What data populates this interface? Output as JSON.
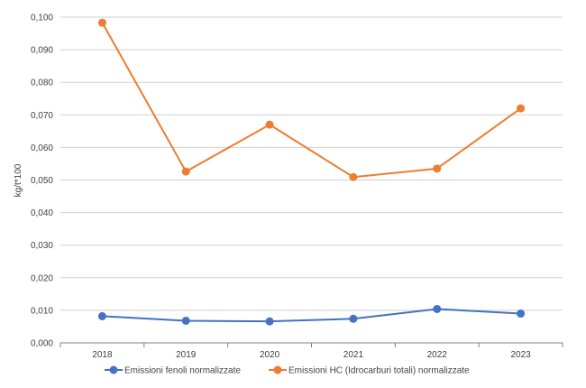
{
  "chart_data": {
    "type": "line",
    "title": "",
    "xlabel": "",
    "ylabel": "kg/t*100",
    "categories": [
      "2018",
      "2019",
      "2020",
      "2021",
      "2022",
      "2023"
    ],
    "ylim": [
      0,
      0.1
    ],
    "y_tick_labels": [
      "0,000",
      "0,010",
      "0,020",
      "0,030",
      "0,040",
      "0,050",
      "0,060",
      "0,070",
      "0,080",
      "0,090",
      "0,100"
    ],
    "y_ticks": [
      0,
      0.01,
      0.02,
      0.03,
      0.04,
      0.05,
      0.06,
      0.07,
      0.08,
      0.09,
      0.1
    ],
    "grid": true,
    "legend_position": "bottom",
    "series": [
      {
        "name": "Emissioni fenoli normalizzate",
        "color": "#4472C4",
        "values": [
          0.0082,
          0.0068,
          0.0066,
          0.0074,
          0.0104,
          0.009
        ]
      },
      {
        "name": "Emissioni HC (Idrocarburi totali) normalizzate",
        "color": "#ED7D31",
        "values": [
          0.0983,
          0.0526,
          0.067,
          0.0509,
          0.0535,
          0.072
        ]
      }
    ]
  }
}
